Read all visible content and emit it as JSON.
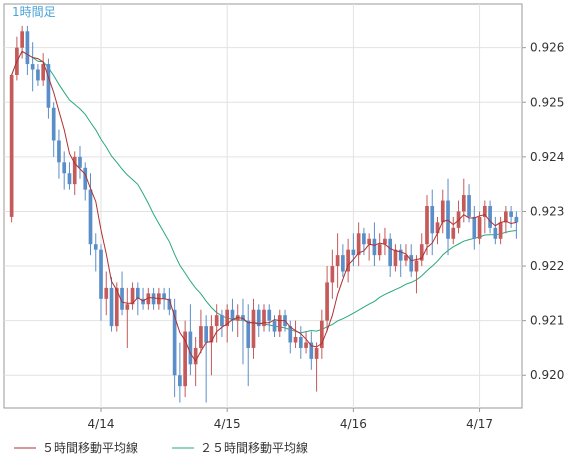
{
  "timeframe_label": "1時間足",
  "chart_data": {
    "type": "candlestick",
    "title": "",
    "xlabel": "",
    "ylabel": "",
    "ylim": [
      0.9194,
      0.9268
    ],
    "y_ticks": [
      0.92,
      0.921,
      0.922,
      0.923,
      0.924,
      0.925,
      0.926
    ],
    "y_tick_labels": [
      "0.920",
      "0.921",
      "0.922",
      "0.923",
      "0.924",
      "0.925",
      "0.926"
    ],
    "x_ticks": [
      {
        "label": "4/14",
        "index": 17
      },
      {
        "label": "4/15",
        "index": 41
      },
      {
        "label": "4/16",
        "index": 65
      },
      {
        "label": "4/17",
        "index": 89
      }
    ],
    "grid": true,
    "colors": {
      "up": "#c45a5a",
      "down": "#5a8ec8",
      "ma5": "#b03030",
      "ma25": "#2aa87a",
      "axis_label": "#4aa3d8"
    },
    "legend": [
      {
        "name": "５時間移動平均線",
        "color": "#b03030"
      },
      {
        "name": "２５時間移動平均線",
        "color": "#2aa87a"
      }
    ],
    "candles": [
      [
        0.9229,
        0.9255,
        0.9228,
        0.9255
      ],
      [
        0.9255,
        0.9262,
        0.9254,
        0.926
      ],
      [
        0.926,
        0.9264,
        0.9258,
        0.9263
      ],
      [
        0.9263,
        0.9264,
        0.9255,
        0.9257
      ],
      [
        0.9257,
        0.9261,
        0.9252,
        0.9256
      ],
      [
        0.9256,
        0.9257,
        0.9253,
        0.9254
      ],
      [
        0.9254,
        0.9259,
        0.9253,
        0.9257
      ],
      [
        0.9257,
        0.9258,
        0.9247,
        0.9249
      ],
      [
        0.9249,
        0.925,
        0.924,
        0.9243
      ],
      [
        0.9243,
        0.9245,
        0.9236,
        0.9239
      ],
      [
        0.9239,
        0.9241,
        0.9234,
        0.9237
      ],
      [
        0.9237,
        0.9239,
        0.9234,
        0.9235
      ],
      [
        0.9235,
        0.9241,
        0.9233,
        0.924
      ],
      [
        0.924,
        0.9242,
        0.9236,
        0.9238
      ],
      [
        0.9238,
        0.9239,
        0.9232,
        0.9234
      ],
      [
        0.9234,
        0.9237,
        0.9222,
        0.9224
      ],
      [
        0.9224,
        0.9226,
        0.9219,
        0.9223
      ],
      [
        0.9223,
        0.9224,
        0.921,
        0.9214
      ],
      [
        0.9214,
        0.9219,
        0.9211,
        0.9216
      ],
      [
        0.9216,
        0.9218,
        0.9208,
        0.9209
      ],
      [
        0.9209,
        0.9217,
        0.9208,
        0.9216
      ],
      [
        0.9216,
        0.9219,
        0.9211,
        0.9212
      ],
      [
        0.9212,
        0.9216,
        0.9205,
        0.9213
      ],
      [
        0.9213,
        0.9217,
        0.9212,
        0.9216
      ],
      [
        0.9216,
        0.9217,
        0.9211,
        0.9214
      ],
      [
        0.9214,
        0.9216,
        0.9212,
        0.9213
      ],
      [
        0.9213,
        0.9216,
        0.9212,
        0.9215
      ],
      [
        0.9215,
        0.9216,
        0.9212,
        0.9213
      ],
      [
        0.9213,
        0.9216,
        0.9212,
        0.9215
      ],
      [
        0.9215,
        0.9216,
        0.9212,
        0.9214
      ],
      [
        0.9214,
        0.9216,
        0.9211,
        0.9212
      ],
      [
        0.9212,
        0.9214,
        0.9196,
        0.92
      ],
      [
        0.92,
        0.9206,
        0.9195,
        0.9198
      ],
      [
        0.9198,
        0.921,
        0.9196,
        0.9208
      ],
      [
        0.9208,
        0.9213,
        0.92,
        0.9202
      ],
      [
        0.9202,
        0.9207,
        0.9198,
        0.9205
      ],
      [
        0.9205,
        0.9212,
        0.9204,
        0.9209
      ],
      [
        0.9209,
        0.9211,
        0.9195,
        0.9206
      ],
      [
        0.9206,
        0.9211,
        0.92,
        0.9209
      ],
      [
        0.9209,
        0.9213,
        0.9206,
        0.9211
      ],
      [
        0.9211,
        0.9212,
        0.9207,
        0.9209
      ],
      [
        0.9209,
        0.9213,
        0.9206,
        0.9212
      ],
      [
        0.9212,
        0.9214,
        0.9208,
        0.921
      ],
      [
        0.921,
        0.9213,
        0.9207,
        0.9211
      ],
      [
        0.9211,
        0.9214,
        0.9202,
        0.921
      ],
      [
        0.921,
        0.9213,
        0.9198,
        0.9205
      ],
      [
        0.9205,
        0.9214,
        0.9203,
        0.9212
      ],
      [
        0.9212,
        0.9213,
        0.9207,
        0.9209
      ],
      [
        0.9209,
        0.9213,
        0.9208,
        0.9212
      ],
      [
        0.9212,
        0.9213,
        0.9208,
        0.921
      ],
      [
        0.921,
        0.9211,
        0.9207,
        0.9208
      ],
      [
        0.9208,
        0.9212,
        0.9207,
        0.9211
      ],
      [
        0.9211,
        0.9212,
        0.9208,
        0.9209
      ],
      [
        0.9209,
        0.921,
        0.9204,
        0.9206
      ],
      [
        0.9206,
        0.921,
        0.9205,
        0.9207
      ],
      [
        0.9207,
        0.9209,
        0.9203,
        0.9205
      ],
      [
        0.9205,
        0.9208,
        0.9204,
        0.9206
      ],
      [
        0.9206,
        0.9208,
        0.9201,
        0.9203
      ],
      [
        0.9203,
        0.9206,
        0.9197,
        0.9205
      ],
      [
        0.9205,
        0.9212,
        0.9203,
        0.921
      ],
      [
        0.921,
        0.922,
        0.9208,
        0.9217
      ],
      [
        0.9217,
        0.9223,
        0.9214,
        0.922
      ],
      [
        0.922,
        0.9226,
        0.9216,
        0.9222
      ],
      [
        0.9222,
        0.9224,
        0.9218,
        0.9219
      ],
      [
        0.9219,
        0.9225,
        0.9217,
        0.9223
      ],
      [
        0.9223,
        0.9226,
        0.922,
        0.9222
      ],
      [
        0.9222,
        0.9228,
        0.922,
        0.9226
      ],
      [
        0.9226,
        0.9227,
        0.9222,
        0.9224
      ],
      [
        0.9224,
        0.9226,
        0.9221,
        0.9225
      ],
      [
        0.9225,
        0.9228,
        0.922,
        0.9222
      ],
      [
        0.9222,
        0.9226,
        0.9221,
        0.9224
      ],
      [
        0.9224,
        0.9227,
        0.9222,
        0.9225
      ],
      [
        0.9225,
        0.9226,
        0.9218,
        0.922
      ],
      [
        0.922,
        0.9224,
        0.9219,
        0.9223
      ],
      [
        0.9223,
        0.9224,
        0.9218,
        0.9221
      ],
      [
        0.9221,
        0.9224,
        0.922,
        0.9222
      ],
      [
        0.9222,
        0.9224,
        0.9218,
        0.9219
      ],
      [
        0.9219,
        0.9222,
        0.9215,
        0.9221
      ],
      [
        0.9221,
        0.9226,
        0.922,
        0.9224
      ],
      [
        0.9224,
        0.9233,
        0.9222,
        0.9231
      ],
      [
        0.9231,
        0.9234,
        0.9222,
        0.9226
      ],
      [
        0.9226,
        0.9229,
        0.9224,
        0.9228
      ],
      [
        0.9228,
        0.9234,
        0.9226,
        0.9232
      ],
      [
        0.9232,
        0.9236,
        0.9222,
        0.9225
      ],
      [
        0.9225,
        0.9229,
        0.9224,
        0.9227
      ],
      [
        0.9227,
        0.9232,
        0.9226,
        0.923
      ],
      [
        0.923,
        0.9236,
        0.9228,
        0.9233
      ],
      [
        0.9233,
        0.9235,
        0.9228,
        0.9229
      ],
      [
        0.9229,
        0.9231,
        0.9223,
        0.9225
      ],
      [
        0.9225,
        0.923,
        0.9224,
        0.9229
      ],
      [
        0.9229,
        0.9232,
        0.9226,
        0.9231
      ],
      [
        0.9231,
        0.9232,
        0.9226,
        0.9227
      ],
      [
        0.9227,
        0.9229,
        0.9224,
        0.9225
      ],
      [
        0.9225,
        0.9229,
        0.9224,
        0.9228
      ],
      [
        0.9228,
        0.9231,
        0.9226,
        0.923
      ],
      [
        0.923,
        0.9231,
        0.9227,
        0.9229
      ],
      [
        0.9229,
        0.923,
        0.9225,
        0.9228
      ]
    ]
  }
}
